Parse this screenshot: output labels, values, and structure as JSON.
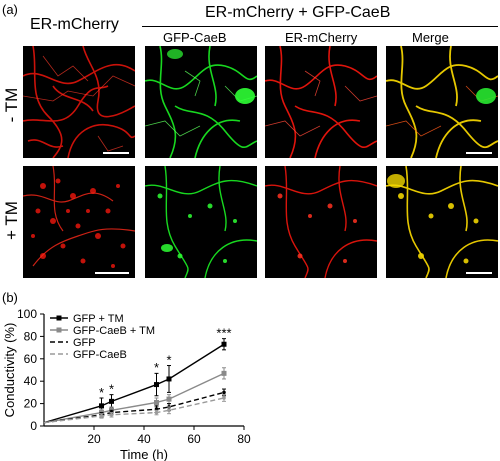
{
  "panel_a": {
    "tag": "(a)",
    "col_header_left": "ER-mCherry",
    "col_header_group": "ER-mCherry + GFP-CaeB",
    "sub_headers": [
      "GFP-CaeB",
      "ER-mCherry",
      "Merge"
    ],
    "row_labels": [
      "- TM",
      "+ TM"
    ],
    "channel_colors": {
      "red": "#ff1a10",
      "green": "#1aff24",
      "merge": "#f2d200"
    }
  },
  "panel_b": {
    "tag": "(b)",
    "chart_data": {
      "type": "line",
      "xlabel": "Time (h)",
      "ylabel": "Conductivity (%)",
      "xlim": [
        0,
        80
      ],
      "ylim": [
        0,
        100
      ],
      "xticks": [
        20,
        40,
        60,
        80
      ],
      "yticks": [
        0,
        20,
        40,
        60,
        80,
        100
      ],
      "legend_position": "top-left",
      "series": [
        {
          "name": "GFP + TM",
          "style": "solid",
          "color": "#000000",
          "x": [
            0,
            23,
            27,
            45,
            50,
            72
          ],
          "y": [
            3,
            18,
            22,
            37,
            42,
            73
          ],
          "err": [
            0,
            7,
            6,
            10,
            12,
            5
          ]
        },
        {
          "name": "GFP-CaeB + TM",
          "style": "solid",
          "color": "#8a8a8a",
          "x": [
            0,
            23,
            27,
            45,
            50,
            72
          ],
          "y": [
            3,
            12,
            14,
            21,
            24,
            47
          ],
          "err": [
            0,
            3,
            3,
            4,
            4,
            5
          ]
        },
        {
          "name": "GFP",
          "style": "dashed",
          "color": "#000000",
          "x": [
            0,
            23,
            27,
            45,
            50,
            72
          ],
          "y": [
            3,
            10,
            12,
            15,
            17,
            30
          ],
          "err": [
            0,
            2,
            2,
            3,
            3,
            3
          ]
        },
        {
          "name": "GFP-CaeB",
          "style": "dashed",
          "color": "#9a9a9a",
          "x": [
            0,
            23,
            27,
            45,
            50,
            72
          ],
          "y": [
            3,
            9,
            10,
            12,
            14,
            25
          ],
          "err": [
            0,
            2,
            2,
            2,
            3,
            3
          ]
        }
      ],
      "annotations": [
        {
          "text": "*",
          "x": 23,
          "y": 26
        },
        {
          "text": "*",
          "x": 27,
          "y": 29
        },
        {
          "text": "*",
          "x": 45,
          "y": 48
        },
        {
          "text": "*",
          "x": 50,
          "y": 55
        },
        {
          "text": "***",
          "x": 72,
          "y": 79
        }
      ]
    }
  }
}
